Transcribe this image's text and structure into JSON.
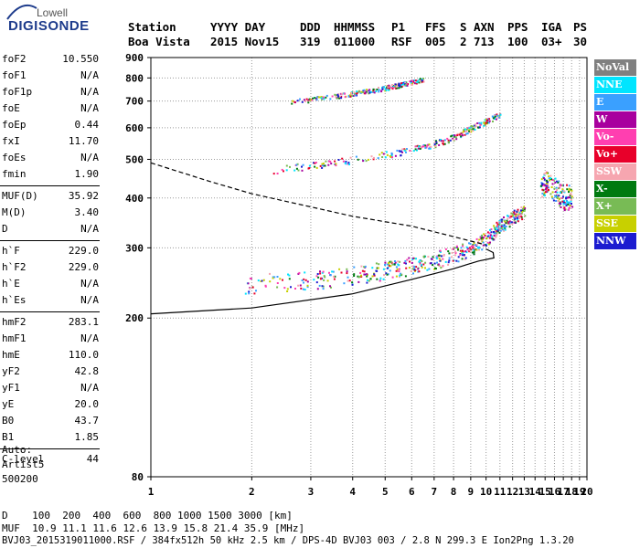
{
  "logo": {
    "line1": "Lowell",
    "line2": "DIGISONDE"
  },
  "header": {
    "labels": [
      "Station",
      "YYYY DAY",
      "DDD",
      "HHMMSS",
      "P1",
      "FFS",
      "S",
      "AXN",
      "PPS",
      "IGA",
      "PS"
    ],
    "values": [
      "Boa Vista",
      "2015 Nov15",
      "319",
      "011000",
      "RSF",
      "005",
      "2",
      "713",
      "100",
      "03+",
      "30"
    ]
  },
  "params": [
    {
      "name": "foF2",
      "value": "10.550"
    },
    {
      "name": "foF1",
      "value": "N/A"
    },
    {
      "name": "foF1p",
      "value": "N/A"
    },
    {
      "name": "foE",
      "value": "N/A"
    },
    {
      "name": "foEp",
      "value": "0.44"
    },
    {
      "name": "fxI",
      "value": "11.70"
    },
    {
      "name": "foEs",
      "value": "N/A"
    },
    {
      "name": "fmin",
      "value": "1.90"
    },
    {
      "name": "MUF(D)",
      "value": "35.92"
    },
    {
      "name": "M(D)",
      "value": "3.40"
    },
    {
      "name": "D",
      "value": "N/A"
    },
    {
      "name": "h`F",
      "value": "229.0"
    },
    {
      "name": "h`F2",
      "value": "229.0"
    },
    {
      "name": "h`E",
      "value": "N/A"
    },
    {
      "name": "h`Es",
      "value": "N/A"
    },
    {
      "name": "hmF2",
      "value": "283.1"
    },
    {
      "name": "hmF1",
      "value": "N/A"
    },
    {
      "name": "hmE",
      "value": "110.0"
    },
    {
      "name": "yF2",
      "value": "42.8"
    },
    {
      "name": "yF1",
      "value": "N/A"
    },
    {
      "name": "yE",
      "value": "20.0"
    },
    {
      "name": "B0",
      "value": "43.7"
    },
    {
      "name": "B1",
      "value": "1.85"
    },
    {
      "name": "C-level",
      "value": "44"
    }
  ],
  "autoscaling": {
    "line1": "Auto:",
    "line2": "Artist5",
    "line3": "500200"
  },
  "legend": [
    {
      "label": "NoVal",
      "color": "#808080"
    },
    {
      "label": "NNE",
      "color": "#00e5ff"
    },
    {
      "label": "E",
      "color": "#3aa0ff"
    },
    {
      "label": "W",
      "color": "#a8009e"
    },
    {
      "label": "Vo-",
      "color": "#ff3fb0"
    },
    {
      "label": "Vo+",
      "color": "#e8002a"
    },
    {
      "label": "SSW",
      "color": "#f6a6b0"
    },
    {
      "label": "X-",
      "color": "#007a10"
    },
    {
      "label": "X+",
      "color": "#78bb55"
    },
    {
      "label": "SSE",
      "color": "#c8d000"
    },
    {
      "label": "NNW",
      "color": "#1c1cd0"
    }
  ],
  "footer": {
    "d_row": "D    100  200  400  600  800 1000 1500 3000 [km]",
    "muf_row": "MUF  10.9 11.1 11.6 12.6 13.9 15.8 21.4 35.9 [MHz]",
    "file_row": "BVJ03_2015319011000.RSF / 384fx512h 50 kHz 2.5 km / DPS-4D BVJ03 003 / 2.8 N 299.3 E Ion2Png 1.3.20"
  },
  "chart_data": {
    "type": "scatter",
    "title": "",
    "xlabel": "",
    "ylabel": "",
    "xlim": [
      1,
      20
    ],
    "ylim": [
      80,
      900
    ],
    "x_ticks": [
      1,
      2,
      3,
      4,
      5,
      6,
      7,
      8,
      9,
      10,
      11,
      12,
      13,
      14,
      15,
      16,
      17,
      18,
      19,
      20
    ],
    "y_ticks": [
      80,
      200,
      300,
      400,
      500,
      600,
      700,
      800,
      900
    ],
    "y_scale": "logarithmic",
    "x_scale": "logarithmic",
    "grid": "dotted",
    "echo_traces": [
      {
        "name": "F2 first-hop O-trace",
        "points": [
          [
            1.9,
            245
          ],
          [
            3,
            250
          ],
          [
            4,
            257
          ],
          [
            5,
            264
          ],
          [
            6,
            272
          ],
          [
            7,
            280
          ],
          [
            8,
            290
          ],
          [
            9,
            300
          ],
          [
            10,
            318
          ],
          [
            11,
            342
          ],
          [
            12,
            360
          ],
          [
            13,
            372
          ]
        ]
      },
      {
        "name": "F2 second-hop",
        "points": [
          [
            2.3,
            470
          ],
          [
            3,
            485
          ],
          [
            4,
            500
          ],
          [
            5,
            515
          ],
          [
            6,
            530
          ],
          [
            7,
            548
          ],
          [
            8,
            570
          ],
          [
            9,
            600
          ],
          [
            10,
            625
          ],
          [
            11,
            650
          ]
        ]
      },
      {
        "name": "F2 third-hop",
        "points": [
          [
            2.6,
            698
          ],
          [
            3.5,
            720
          ],
          [
            4.5,
            745
          ],
          [
            5.5,
            770
          ],
          [
            6.5,
            795
          ]
        ]
      },
      {
        "name": "spread F",
        "points": [
          [
            14.5,
            420
          ],
          [
            15,
            440
          ],
          [
            16,
            420
          ],
          [
            17,
            405
          ],
          [
            18,
            400
          ]
        ]
      }
    ],
    "profile_solid": [
      [
        1.0,
        205
      ],
      [
        2,
        212
      ],
      [
        4,
        230
      ],
      [
        6,
        250
      ],
      [
        8,
        266
      ],
      [
        9.5,
        278
      ],
      [
        10.55,
        283
      ],
      [
        10.5,
        292
      ],
      [
        10,
        298
      ]
    ],
    "profile_dashed": [
      [
        1.0,
        490
      ],
      [
        1.5,
        440
      ],
      [
        2,
        410
      ],
      [
        3,
        380
      ],
      [
        4,
        360
      ],
      [
        6,
        340
      ],
      [
        8,
        320
      ],
      [
        10,
        305
      ]
    ]
  }
}
